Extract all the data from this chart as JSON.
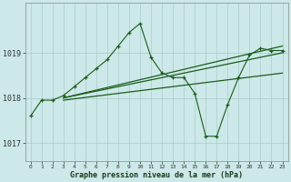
{
  "xlabel": "Graphe pression niveau de la mer (hPa)",
  "background_color": "#cce8e8",
  "grid_color": "#aacccc",
  "line_color": "#1a5c1a",
  "x_min": 0,
  "x_max": 23,
  "y_min": 1016.6,
  "y_max": 1020.1,
  "yticks": [
    1017,
    1018,
    1019
  ],
  "xticks": [
    0,
    1,
    2,
    3,
    4,
    5,
    6,
    7,
    8,
    9,
    10,
    11,
    12,
    13,
    14,
    15,
    16,
    17,
    18,
    19,
    20,
    21,
    22,
    23
  ],
  "main_x": [
    0,
    1,
    2,
    3,
    4,
    5,
    6,
    7,
    8,
    9,
    10,
    11,
    12,
    13,
    14,
    15,
    16,
    17,
    18,
    19,
    20,
    21,
    22,
    23
  ],
  "main_y": [
    1017.6,
    1017.95,
    1017.95,
    1018.05,
    1018.25,
    1018.45,
    1018.65,
    1018.85,
    1019.15,
    1019.45,
    1019.65,
    1018.9,
    1018.55,
    1018.45,
    1018.45,
    1018.1,
    1017.15,
    1017.15,
    1017.85,
    1018.45,
    1018.95,
    1019.1,
    1019.05,
    1019.05
  ],
  "trend1_x": [
    3,
    23
  ],
  "trend1_y": [
    1018.0,
    1019.15
  ],
  "trend2_x": [
    3,
    23
  ],
  "trend2_y": [
    1018.0,
    1019.0
  ],
  "trend3_x": [
    3,
    23
  ],
  "trend3_y": [
    1017.95,
    1018.55
  ]
}
